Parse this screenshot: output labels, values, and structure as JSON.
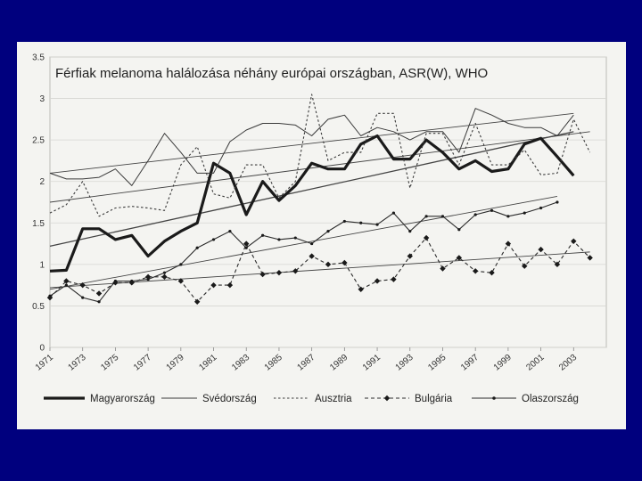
{
  "chart_data": {
    "type": "line",
    "title": "Férfiak melanoma halálozása néhány európai országban, ASR(W), WHO",
    "ylim": [
      0,
      3.5
    ],
    "yticks": [
      "0",
      "0.5",
      "1",
      "1.5",
      "2",
      "2.5",
      "3",
      "3.5"
    ],
    "xticks": [
      "1971",
      "1973",
      "1975",
      "1977",
      "1979",
      "1981",
      "1983",
      "1985",
      "1987",
      "1989",
      "1991",
      "1993",
      "1995",
      "1997",
      "1999",
      "2001",
      "2003"
    ],
    "grid": true,
    "legend_position": "bottom",
    "series": [
      {
        "name": "Magyarország",
        "style": "thick",
        "x": [
          1971,
          1972,
          1973,
          1974,
          1975,
          1976,
          1977,
          1978,
          1979,
          1980,
          1981,
          1982,
          1983,
          1984,
          1985,
          1986,
          1987,
          1988,
          1989,
          1990,
          1991,
          1992,
          1993,
          1994,
          1995,
          1996,
          1997,
          1998,
          1999,
          2000,
          2001,
          2002,
          2003
        ],
        "values": [
          0.92,
          0.93,
          1.43,
          1.43,
          1.3,
          1.35,
          1.1,
          1.28,
          1.4,
          1.5,
          2.22,
          2.1,
          1.6,
          2.0,
          1.77,
          1.95,
          2.22,
          2.15,
          2.15,
          2.45,
          2.55,
          2.27,
          2.27,
          2.5,
          2.35,
          2.15,
          2.25,
          2.12,
          2.15,
          2.45,
          2.52,
          2.3,
          2.07
        ],
        "trend": [
          1.22,
          2.6
        ]
      },
      {
        "name": "Svédország",
        "style": "thin",
        "x": [
          1971,
          1972,
          1973,
          1974,
          1975,
          1976,
          1977,
          1978,
          1979,
          1980,
          1981,
          1982,
          1983,
          1984,
          1985,
          1986,
          1987,
          1988,
          1989,
          1990,
          1991,
          1992,
          1993,
          1994,
          1995,
          1996,
          1997,
          1998,
          1999,
          2000,
          2001,
          2002,
          2003
        ],
        "values": [
          2.1,
          2.03,
          2.03,
          2.05,
          2.15,
          1.95,
          2.25,
          2.58,
          2.35,
          2.1,
          2.1,
          2.48,
          2.62,
          2.7,
          2.7,
          2.68,
          2.55,
          2.75,
          2.8,
          2.55,
          2.65,
          2.6,
          2.5,
          2.6,
          2.6,
          2.35,
          2.88,
          2.8,
          2.7,
          2.65,
          2.65,
          2.55,
          2.8
        ],
        "trend": [
          2.1,
          2.82
        ]
      },
      {
        "name": "Ausztria",
        "style": "dotted",
        "x": [
          1971,
          1972,
          1973,
          1974,
          1975,
          1976,
          1977,
          1978,
          1979,
          1980,
          1981,
          1982,
          1983,
          1984,
          1985,
          1986,
          1987,
          1988,
          1989,
          1990,
          1991,
          1992,
          1993,
          1994,
          1995,
          1996,
          1997,
          1998,
          1999,
          2000,
          2001,
          2002,
          2003,
          2004
        ],
        "values": [
          1.62,
          1.72,
          2.0,
          1.58,
          1.68,
          1.7,
          1.68,
          1.65,
          2.2,
          2.42,
          1.85,
          1.8,
          2.2,
          2.2,
          1.8,
          2.0,
          3.05,
          2.25,
          2.35,
          2.35,
          2.82,
          2.82,
          1.92,
          2.58,
          2.58,
          2.2,
          2.7,
          2.2,
          2.2,
          2.38,
          2.08,
          2.1,
          2.75,
          2.35
        ],
        "trend": [
          1.75,
          2.6
        ]
      },
      {
        "name": "Bulgária",
        "style": "dashed-diamond",
        "x": [
          1971,
          1972,
          1973,
          1974,
          1975,
          1976,
          1977,
          1978,
          1979,
          1980,
          1981,
          1982,
          1983,
          1984,
          1985,
          1986,
          1987,
          1988,
          1989,
          1990,
          1991,
          1992,
          1993,
          1994,
          1995,
          1996,
          1997,
          1998,
          1999,
          2000,
          2001,
          2002,
          2003,
          2004
        ],
        "values": [
          0.6,
          0.8,
          0.75,
          0.65,
          0.78,
          0.78,
          0.85,
          0.85,
          0.8,
          0.55,
          0.75,
          0.75,
          1.25,
          0.88,
          0.9,
          0.92,
          1.1,
          1.0,
          1.02,
          0.7,
          0.8,
          0.82,
          1.1,
          1.32,
          0.95,
          1.08,
          0.92,
          0.9,
          1.25,
          0.98,
          1.18,
          1.0,
          1.28,
          1.08
        ],
        "trend": [
          0.72,
          1.15
        ]
      },
      {
        "name": "Olaszország",
        "style": "thin-dot",
        "x": [
          1971,
          1972,
          1973,
          1974,
          1975,
          1976,
          1977,
          1978,
          1979,
          1980,
          1981,
          1982,
          1983,
          1984,
          1985,
          1986,
          1987,
          1988,
          1989,
          1990,
          1991,
          1992,
          1993,
          1994,
          1995,
          1996,
          1997,
          1998,
          1999,
          2000,
          2001,
          2002
        ],
        "values": [
          0.62,
          0.75,
          0.6,
          0.55,
          0.8,
          0.8,
          0.82,
          0.9,
          1.0,
          1.2,
          1.3,
          1.4,
          1.2,
          1.35,
          1.3,
          1.32,
          1.25,
          1.4,
          1.52,
          1.5,
          1.48,
          1.62,
          1.4,
          1.58,
          1.58,
          1.42,
          1.6,
          1.65,
          1.58,
          1.62,
          1.68,
          1.75
        ],
        "trend": [
          0.7,
          1.82
        ]
      }
    ]
  }
}
